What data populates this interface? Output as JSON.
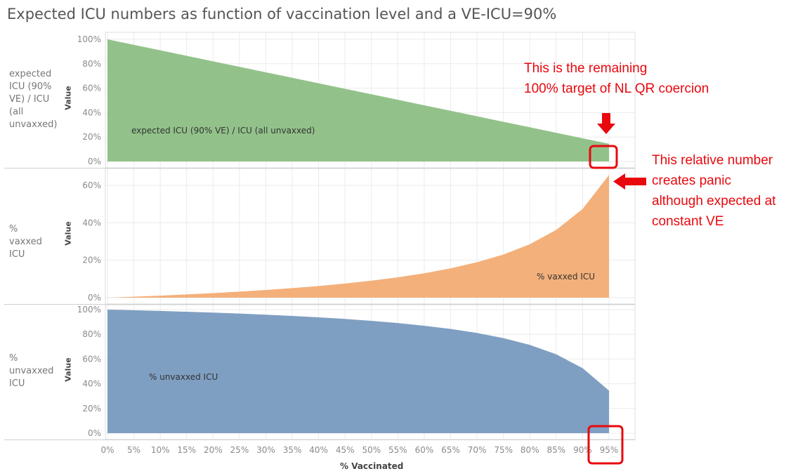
{
  "title": "Expected ICU numbers as function of vaccination level and a VE-ICU=90%",
  "colors": {
    "green": "#92c28a",
    "orange": "#f4b07a",
    "blue": "#7f9fc2",
    "annotation_red": "#e8080e",
    "gridline": "#ebebeb",
    "tick_text": "#8a8a8a"
  },
  "annotations": {
    "remaining_target_line1": "This is the remaining",
    "remaining_target_line2": "100% target of NL QR coercion",
    "relative_line1": "This relative number",
    "relative_line2": "creates panic",
    "relative_line3": "although expected at",
    "relative_line4": "constant VE"
  },
  "chart_data": {
    "type": "area",
    "x_title": "% Vaccinated",
    "x": [
      "0%",
      "5%",
      "10%",
      "15%",
      "20%",
      "25%",
      "30%",
      "35%",
      "40%",
      "45%",
      "50%",
      "55%",
      "60%",
      "65%",
      "70%",
      "75%",
      "80%",
      "85%",
      "90%",
      "95%"
    ],
    "x_values": [
      0,
      5,
      10,
      15,
      20,
      25,
      30,
      35,
      40,
      45,
      50,
      55,
      60,
      65,
      70,
      75,
      80,
      85,
      90,
      95
    ],
    "rows": [
      {
        "row_label": "expected ICU (90% VE) / ICU (all unvaxxed)",
        "axis_label": "Value",
        "series_label": "expected ICU (90% VE) / ICU (all unvaxxed)",
        "color": "#92c28a",
        "y_ticks": [
          "0%",
          "20%",
          "40%",
          "60%",
          "80%",
          "100%"
        ],
        "ylim": [
          0,
          100
        ],
        "values": [
          100,
          95.5,
          91,
          86.5,
          82,
          77.5,
          73,
          68.5,
          64,
          59.5,
          55,
          50.5,
          46,
          41.5,
          37,
          32.5,
          28,
          23.5,
          19,
          14.5
        ]
      },
      {
        "row_label": "% vaxxed ICU",
        "axis_label": "Value",
        "series_label": "% vaxxed ICU",
        "color": "#f4b07a",
        "y_ticks": [
          "0%",
          "20%",
          "40%",
          "60%"
        ],
        "ylim": [
          0,
          67
        ],
        "values": [
          0,
          0.52,
          1.1,
          1.73,
          2.44,
          3.23,
          4.11,
          5.11,
          6.25,
          7.56,
          9.09,
          10.89,
          13.04,
          15.66,
          18.92,
          23.08,
          28.57,
          36.17,
          47.37,
          65.52
        ]
      },
      {
        "row_label": "% unvaxxed ICU",
        "axis_label": "Value",
        "series_label": "% unvaxxed ICU",
        "color": "#7f9fc2",
        "y_ticks": [
          "0%",
          "20%",
          "40%",
          "60%",
          "80%",
          "100%"
        ],
        "ylim": [
          0,
          100
        ],
        "values": [
          100,
          99.48,
          98.9,
          98.27,
          97.56,
          96.77,
          95.89,
          94.89,
          93.75,
          92.44,
          90.91,
          89.11,
          86.96,
          84.34,
          81.08,
          76.92,
          71.43,
          63.83,
          52.63,
          34.48
        ]
      }
    ]
  }
}
